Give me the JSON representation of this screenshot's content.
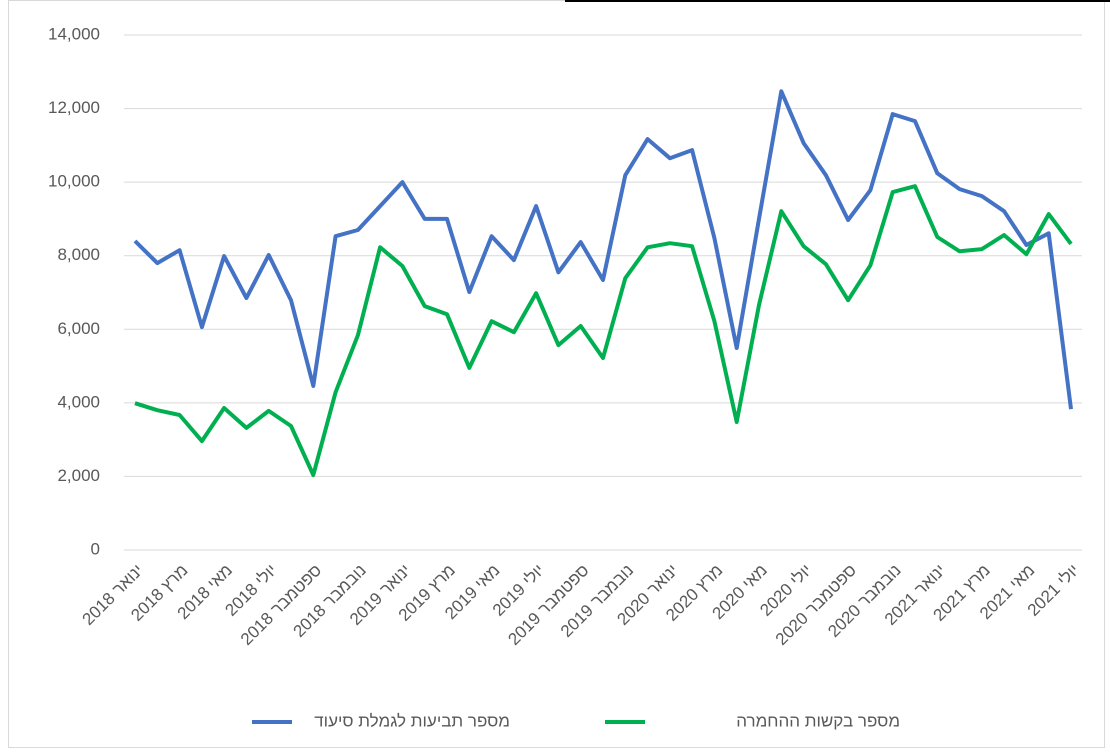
{
  "chart_data": {
    "type": "line",
    "categories": [
      "ינואר 2018",
      null,
      "מרץ 2018",
      null,
      "מאי 2018",
      null,
      "יולי 2018",
      null,
      "ספטמבר 2018",
      null,
      "נובמבר 2018",
      null,
      "ינואר 2019",
      null,
      "מרץ 2019",
      null,
      "מאי 2019",
      null,
      "יולי 2019",
      null,
      "ספטמבר 2019",
      null,
      "נובמבר 2019",
      null,
      "ינואר 2020",
      null,
      "מרץ 2020",
      null,
      "מאי 2020",
      null,
      "יולי 2020",
      null,
      "ספטמבר 2020",
      null,
      "נובמבר 2020",
      null,
      "ינואר 2021",
      null,
      "מרץ 2021",
      null,
      "מאי 2021",
      null,
      "יולי 2021"
    ],
    "series": [
      {
        "name": "מספר תביעות לגמלת סיעוד",
        "color": "#4472c4",
        "values": [
          8400,
          7800,
          8150,
          6060,
          7990,
          6850,
          8020,
          6790,
          4460,
          8530,
          8700,
          9350,
          10000,
          9000,
          9000,
          7010,
          8530,
          7880,
          9350,
          7550,
          8370,
          7340,
          10190,
          11170,
          10650,
          10870,
          8480,
          5490,
          9000,
          12470,
          11060,
          10190,
          8970,
          9780,
          11850,
          11660,
          10240,
          9810,
          9620,
          9210,
          8290,
          8610,
          3830
        ]
      },
      {
        "name": "מספר בקשות ההחמרה",
        "color": "#00b050",
        "values": [
          3990,
          3800,
          3670,
          2960,
          3860,
          3320,
          3780,
          3370,
          2040,
          4290,
          5840,
          8230,
          7720,
          6630,
          6410,
          4950,
          6220,
          5920,
          6980,
          5570,
          6090,
          5220,
          7390,
          8230,
          8340,
          8260,
          6220,
          3480,
          6660,
          9210,
          8260,
          7770,
          6790,
          7740,
          9730,
          9890,
          8510,
          8120,
          8180,
          8560,
          8040,
          9130,
          8320
        ]
      }
    ],
    "ylim": [
      0,
      14000
    ],
    "yticks": [
      0,
      {
        "value": 2000,
        "label": "2,000"
      },
      {
        "value": 4000,
        "label": "4,000"
      },
      {
        "value": 6000,
        "label": "6,000"
      },
      {
        "value": 8000,
        "label": "8,000"
      },
      {
        "value": 10000,
        "label": "10,000"
      },
      {
        "value": 12000,
        "label": "12,000"
      },
      {
        "value": 14000,
        "label": "14,000"
      }
    ],
    "grid": true,
    "legend": "bottom"
  }
}
